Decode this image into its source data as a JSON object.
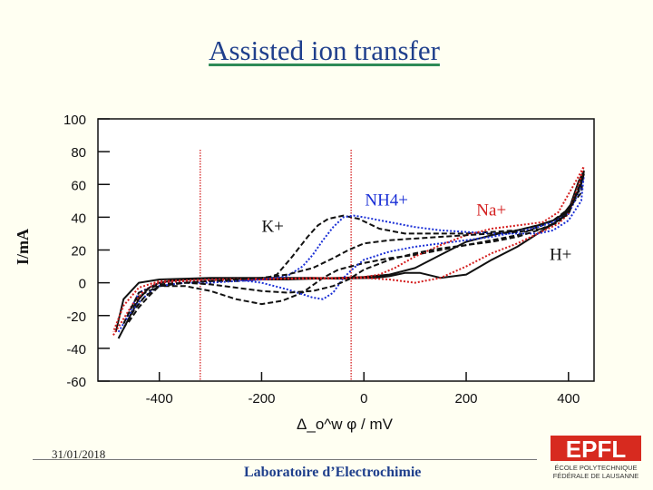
{
  "slide": {
    "title": "Assisted ion transfer",
    "date": "31/01/2018",
    "footer": "Laboratoire d’Electrochimie",
    "logo": {
      "mark": "EPFL",
      "line1": "ÉCOLE POLYTECHNIQUE",
      "line2": "FÉDÉRALE DE LAUSANNE"
    }
  },
  "chart_data": {
    "type": "line",
    "title": "",
    "xlabel": "Δ_o^w φ / mV",
    "ylabel": "I/mA",
    "xlim": [
      -520,
      450
    ],
    "ylim": [
      -60,
      100
    ],
    "x_ticks": [
      "-400",
      "-200",
      "0",
      "200",
      "400"
    ],
    "y_ticks": [
      "100",
      "80",
      "60",
      "40",
      "20",
      "0",
      "-20",
      "-40",
      "-60"
    ],
    "vlines": [
      -320,
      -25
    ],
    "annotations": [
      {
        "text": "K+",
        "x": -200,
        "y": 31,
        "color": "#111111"
      },
      {
        "text": "NH4+",
        "x": 2,
        "y": 47,
        "color": "#1a2fd6"
      },
      {
        "text": "Na+",
        "x": 220,
        "y": 41,
        "color": "#d41e1e"
      },
      {
        "text": "H+",
        "x": 363,
        "y": 14,
        "color": "#111111"
      }
    ],
    "series": [
      {
        "color": "#111111",
        "style": "solid",
        "x": [
          -480,
          -460,
          -440,
          -420,
          -400,
          -380,
          -350,
          -300,
          -250,
          -200,
          -150,
          -100,
          -50,
          0,
          50,
          100,
          150,
          200,
          250,
          300,
          340,
          370,
          390,
          410,
          425,
          430,
          420,
          400,
          380,
          340,
          300,
          250,
          200,
          150,
          110,
          80,
          50,
          20,
          -50,
          -100,
          -200,
          -300,
          -400,
          -440,
          -470,
          -485
        ],
        "y": [
          -34,
          -22,
          -10,
          -3,
          0,
          1,
          2,
          2.5,
          2.5,
          2,
          2,
          2.5,
          3,
          3.5,
          5,
          9,
          17,
          25,
          29,
          32,
          35,
          38,
          42,
          50,
          60,
          68,
          62,
          44,
          38,
          30,
          22,
          14,
          5,
          3,
          6,
          6,
          4,
          3,
          2.5,
          3,
          3,
          3,
          2,
          0,
          -10,
          -30
        ]
      },
      {
        "color": "#111111",
        "style": "dashed",
        "x": [
          -460,
          -440,
          -420,
          -400,
          -350,
          -300,
          -250,
          -200,
          -170,
          -140,
          -110,
          -90,
          -70,
          -40,
          -10,
          30,
          80,
          150,
          200,
          250,
          300,
          340,
          370,
          400,
          425,
          430,
          420,
          400,
          380,
          340,
          300,
          250,
          200,
          150,
          100,
          50,
          0,
          -50,
          -80,
          -120,
          -160,
          -200,
          -250,
          -300,
          -350,
          -400,
          -440,
          -460
        ],
        "y": [
          -24,
          -15,
          -8,
          -2,
          0,
          1,
          1,
          2,
          5,
          16,
          28,
          35,
          39,
          41,
          39,
          33,
          30,
          30,
          30,
          31,
          32,
          35,
          38,
          45,
          55,
          68,
          58,
          43,
          39,
          34,
          29,
          26,
          23,
          20,
          17,
          15,
          12,
          8,
          3,
          -6,
          -11,
          -13,
          -10,
          -5,
          -2,
          -2,
          -8,
          -22
        ]
      },
      {
        "color": "#1a2fd6",
        "style": "dotted",
        "x": [
          -480,
          -460,
          -440,
          -420,
          -400,
          -350,
          -300,
          -250,
          -200,
          -150,
          -120,
          -100,
          -80,
          -60,
          -40,
          -20,
          0,
          50,
          100,
          150,
          200,
          250,
          300,
          340,
          370,
          400,
          425,
          430,
          420,
          400,
          370,
          340,
          300,
          250,
          200,
          150,
          100,
          50,
          0,
          -20,
          -40,
          -60,
          -80,
          -100,
          -150,
          -200,
          -250,
          -300,
          -350,
          -400,
          -440,
          -470
        ],
        "y": [
          -30,
          -20,
          -12,
          -6,
          -2,
          0,
          0,
          1,
          2,
          4,
          10,
          17,
          26,
          34,
          40,
          41,
          40,
          37,
          34,
          32,
          31,
          30,
          30,
          30,
          32,
          38,
          50,
          65,
          55,
          42,
          37,
          34,
          31,
          28,
          26,
          24,
          22,
          19,
          14,
          9,
          3,
          -6,
          -10,
          -9,
          -4,
          0,
          2,
          2,
          1,
          0,
          -6,
          -25
        ]
      },
      {
        "color": "#d41e1e",
        "style": "dotted",
        "x": [
          -490,
          -470,
          -450,
          -430,
          -410,
          -400,
          -350,
          -300,
          -250,
          -200,
          -150,
          -100,
          -50,
          0,
          30,
          60,
          100,
          150,
          200,
          250,
          300,
          350,
          380,
          400,
          420,
          430,
          420,
          400,
          380,
          340,
          300,
          250,
          200,
          150,
          100,
          50,
          0,
          -50,
          -100,
          -200,
          -300,
          -400,
          -440,
          -470,
          -490
        ],
        "y": [
          -32,
          -22,
          -12,
          -5,
          -1,
          0,
          1,
          1.5,
          2,
          2,
          2.5,
          3,
          3,
          3.5,
          5,
          9,
          16,
          23,
          29,
          33,
          35,
          37,
          43,
          54,
          65,
          71,
          60,
          42,
          36,
          30,
          24,
          18,
          10,
          3,
          0,
          2,
          3,
          2.5,
          2.5,
          2.5,
          2,
          1,
          -3,
          -14,
          -30
        ]
      },
      {
        "color": "#111111",
        "style": "dashed",
        "x": [
          -470,
          -450,
          -430,
          -410,
          -400,
          -350,
          -300,
          -250,
          -200,
          -150,
          -100,
          -60,
          -30,
          0,
          50,
          100,
          150,
          200,
          250,
          300,
          350,
          380,
          400,
          420,
          430,
          420,
          400,
          370,
          340,
          300,
          250,
          200,
          150,
          100,
          50,
          0,
          -30,
          -60,
          -100,
          -150,
          -200,
          -250,
          -300,
          -350,
          -400,
          -440,
          -470
        ],
        "y": [
          -28,
          -17,
          -9,
          -4,
          -2,
          0,
          1,
          2,
          3,
          5,
          9,
          15,
          20,
          24,
          26,
          27,
          28,
          29,
          30,
          31,
          33,
          37,
          44,
          56,
          66,
          58,
          42,
          36,
          32,
          28,
          25,
          23,
          21,
          18,
          14,
          8,
          2,
          -2,
          -5,
          -6,
          -5,
          -3,
          -1,
          0,
          -1,
          -6,
          -25
        ]
      }
    ]
  }
}
